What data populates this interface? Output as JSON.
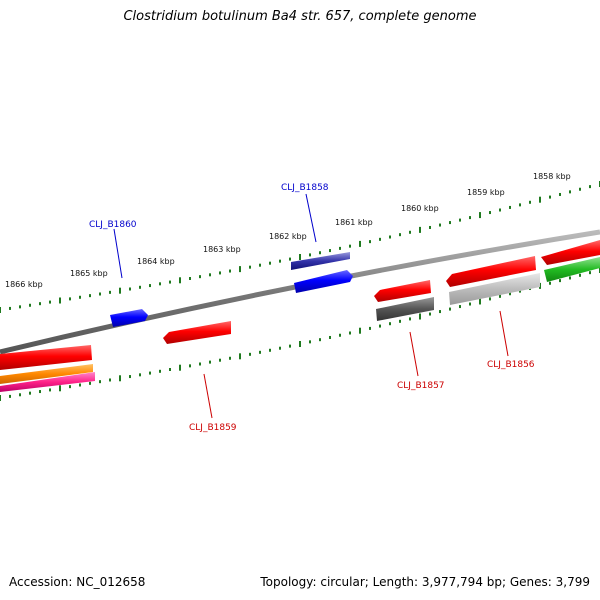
{
  "title": "Clostridium botulinum Ba4 str. 657, complete genome",
  "footer": {
    "accession": "Accession: NC_012658",
    "summary": "Topology: circular; Length: 3,977,794 bp; Genes: 3,799"
  },
  "colors": {
    "backbone": "#808080",
    "tick": "#1f7a1f",
    "label_plus": "#0000cc",
    "label_minus": "#cc0000",
    "gene_red": "#ff0000",
    "gene_blue": "#0000ff",
    "gene_gray": "#666666",
    "gene_lightgray": "#c0c0c0",
    "gene_green": "#22bb22",
    "gene_orange": "#ff8800",
    "gene_pink": "#ff2288",
    "gene_navy": "#4444aa"
  },
  "scale": {
    "labels": [
      "1866 kbp",
      "1865 kbp",
      "1864 kbp",
      "1863 kbp",
      "1862 kbp",
      "1861 kbp",
      "1860 kbp",
      "1859 kbp",
      "1858 kbp"
    ]
  },
  "gene_labels": [
    {
      "id": "CLJ_B1860",
      "strand": "plus"
    },
    {
      "id": "CLJ_B1858",
      "strand": "plus"
    },
    {
      "id": "CLJ_B1859",
      "strand": "minus"
    },
    {
      "id": "CLJ_B1857",
      "strand": "minus"
    },
    {
      "id": "CLJ_B1856",
      "strand": "minus"
    }
  ]
}
